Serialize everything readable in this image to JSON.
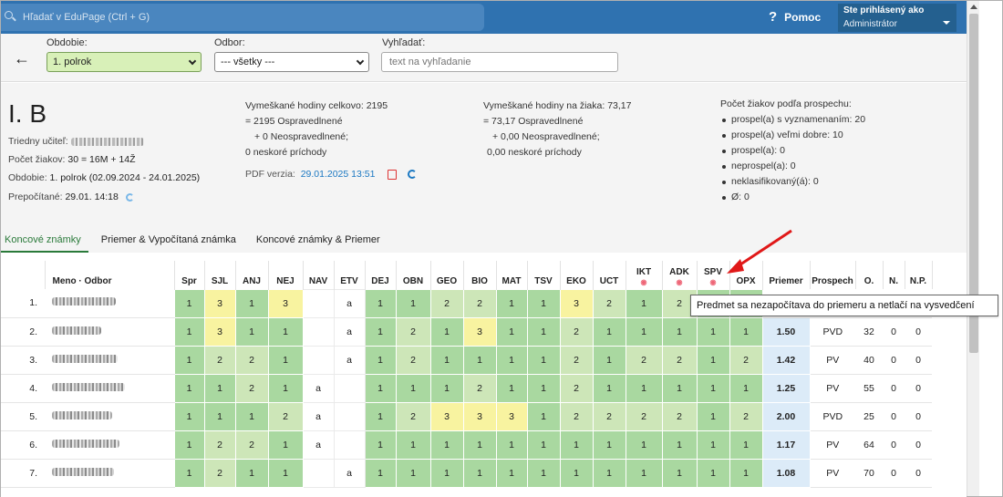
{
  "search": {
    "placeholder": "Hľadať v EduPage (Ctrl + G)"
  },
  "help": {
    "label": "Pomoc"
  },
  "user": {
    "line1": "Ste prihlásený ako",
    "line2": "Administrátor"
  },
  "filters": {
    "period_label": "Obdobie:",
    "period_value": "1. polrok",
    "branch_label": "Odbor:",
    "branch_value": "--- všetky ---",
    "search_label": "Vyhľadať:",
    "search_placeholder": "text na vyhľadanie"
  },
  "info": {
    "class_name": "I. B",
    "teacher_label": "Triedny učiteľ:",
    "students_label": "Počet žiakov:",
    "students_value": "30 = 16M + 14Ž",
    "period_label": "Obdobie:",
    "period_value": "1. polrok (02.09.2024 - 24.01.2025)",
    "recalc_label": "Prepočítané:",
    "recalc_value": "29.01. 14:18",
    "absence_total_label": "Vymeškané hodiny celkovo:",
    "absence_total_value": "2195",
    "absence_total_excused": "= 2195 Ospravedlnené",
    "absence_total_unexcused": "+ 0 Neospravedlnené;",
    "absence_total_late": "0 neskoré príchody",
    "pdf_label": "PDF verzia:",
    "pdf_value": "29.01.2025 13:51",
    "absence_student_label": "Vymeškané hodiny na žiaka:",
    "absence_student_value": "73,17",
    "absence_student_excused": "= 73,17 Ospravedlnené",
    "absence_student_unexcused": "+ 0,00 Neospravedlnené;",
    "absence_student_late": "0,00 neskoré príchody",
    "grades_title": "Počet žiakov podľa prospechu:",
    "grades": [
      "prospel(a) s vyznamenaním: 20",
      "prospel(a) veľmi dobre: 10",
      "prospel(a): 0",
      "neprospel(a): 0",
      "neklasifikovaný(á): 0",
      "Ø: 0"
    ]
  },
  "tabs": [
    "Koncové známky",
    "Priemer & Vypočítaná známka",
    "Koncové známky & Priemer"
  ],
  "table": {
    "name_header": "Meno · Odbor",
    "subjects": [
      "Spr",
      "SJL",
      "ANJ",
      "NEJ",
      "NAV",
      "ETV",
      "DEJ",
      "OBN",
      "GEO",
      "BIO",
      "MAT",
      "TSV",
      "EKO",
      "UCT",
      "IKT",
      "ADK",
      "SPV",
      "OPX"
    ],
    "tail_headers": [
      "Priemer",
      "Prospech",
      "O.",
      "N.",
      "N.P."
    ],
    "rows": [
      {
        "n": "1.",
        "g": [
          "1",
          "3",
          "1",
          "3",
          "",
          "a",
          "1",
          "1",
          "2",
          "2",
          "1",
          "1",
          "3",
          "2",
          "1",
          "2",
          "",
          ""
        ],
        "avg": "",
        "prospech": "",
        "o": "",
        "nn": "",
        "np": ""
      },
      {
        "n": "2.",
        "g": [
          "1",
          "3",
          "1",
          "1",
          "",
          "a",
          "1",
          "2",
          "1",
          "3",
          "1",
          "1",
          "2",
          "1",
          "1",
          "1",
          "1",
          "1"
        ],
        "avg": "1.50",
        "prospech": "PVD",
        "o": "32",
        "nn": "0",
        "np": "0"
      },
      {
        "n": "3.",
        "g": [
          "1",
          "2",
          "2",
          "1",
          "",
          "a",
          "1",
          "2",
          "1",
          "1",
          "1",
          "1",
          "2",
          "1",
          "2",
          "2",
          "1",
          "2"
        ],
        "avg": "1.42",
        "prospech": "PV",
        "o": "40",
        "nn": "0",
        "np": "0"
      },
      {
        "n": "4.",
        "g": [
          "1",
          "1",
          "2",
          "1",
          "a",
          "",
          "1",
          "1",
          "1",
          "2",
          "1",
          "1",
          "2",
          "1",
          "1",
          "1",
          "1",
          "1"
        ],
        "avg": "1.25",
        "prospech": "PV",
        "o": "55",
        "nn": "0",
        "np": "0"
      },
      {
        "n": "5.",
        "g": [
          "1",
          "1",
          "1",
          "2",
          "a",
          "",
          "1",
          "2",
          "3",
          "3",
          "3",
          "1",
          "2",
          "2",
          "2",
          "2",
          "1",
          "2"
        ],
        "avg": "2.00",
        "prospech": "PVD",
        "o": "25",
        "nn": "0",
        "np": "0"
      },
      {
        "n": "6.",
        "g": [
          "1",
          "2",
          "2",
          "1",
          "a",
          "",
          "1",
          "1",
          "1",
          "1",
          "1",
          "1",
          "1",
          "1",
          "1",
          "1",
          "1",
          "1"
        ],
        "avg": "1.17",
        "prospech": "PV",
        "o": "64",
        "nn": "0",
        "np": "0"
      },
      {
        "n": "7.",
        "g": [
          "1",
          "2",
          "1",
          "1",
          "",
          "a",
          "1",
          "1",
          "1",
          "1",
          "1",
          "1",
          "1",
          "1",
          "1",
          "1",
          "1",
          "1"
        ],
        "avg": "1.08",
        "prospech": "PV",
        "o": "70",
        "nn": "0",
        "np": "0"
      }
    ]
  },
  "tooltip": "Predmet sa nezapočítava do priemeru a netlačí na vysvedčení",
  "colors": {
    "topbar": "#2f72b0",
    "grade1": "#a9d8a0",
    "grade2": "#cde6b8",
    "grade3": "#f8f3a0",
    "average": "#dcebf8",
    "arrow": "#e01818"
  }
}
